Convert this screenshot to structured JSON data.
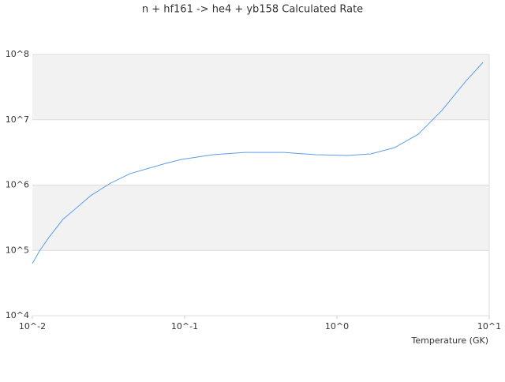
{
  "chart_data": {
    "type": "line",
    "title": "n + hf161 -> he4 + yb158 Calculated Rate",
    "x_label": "Temperature (GK)",
    "x": [
      0.01,
      0.0112,
      0.0129,
      0.0159,
      0.0191,
      0.0242,
      0.0326,
      0.0439,
      0.0752,
      0.0953,
      0.154,
      0.248,
      0.45,
      0.724,
      1.17,
      1.67,
      2.39,
      3.42,
      4.89,
      7.0,
      9.1
    ],
    "series": [
      {
        "color": "#5b9ee8",
        "values": [
          63000,
          100000,
          160000,
          300000,
          430000,
          690000,
          1070000,
          1500000,
          2150000,
          2470000,
          2920000,
          3160000,
          3160000,
          2920000,
          2840000,
          3000000,
          3750000,
          6000000,
          13900000,
          38800000,
          75700000
        ]
      }
    ],
    "xlog": true,
    "ylog": true,
    "xlim": [
      0.01,
      10
    ],
    "ylim": [
      10000,
      100000000
    ],
    "xticks": [
      {
        "value": 0.01,
        "label": "10^-2"
      },
      {
        "value": 0.1,
        "label": "10^-1"
      },
      {
        "value": 1,
        "label": "10^0"
      },
      {
        "value": 10,
        "label": "10^1"
      }
    ],
    "yticks": [
      {
        "value": 10000,
        "label": "10^4"
      },
      {
        "value": 100000,
        "label": "10^5"
      },
      {
        "value": 1000000,
        "label": "10^6"
      },
      {
        "value": 10000000,
        "label": "10^7"
      },
      {
        "value": 100000000,
        "label": "10^8"
      }
    ],
    "grid": true,
    "band_color": "#f2f2f2"
  }
}
